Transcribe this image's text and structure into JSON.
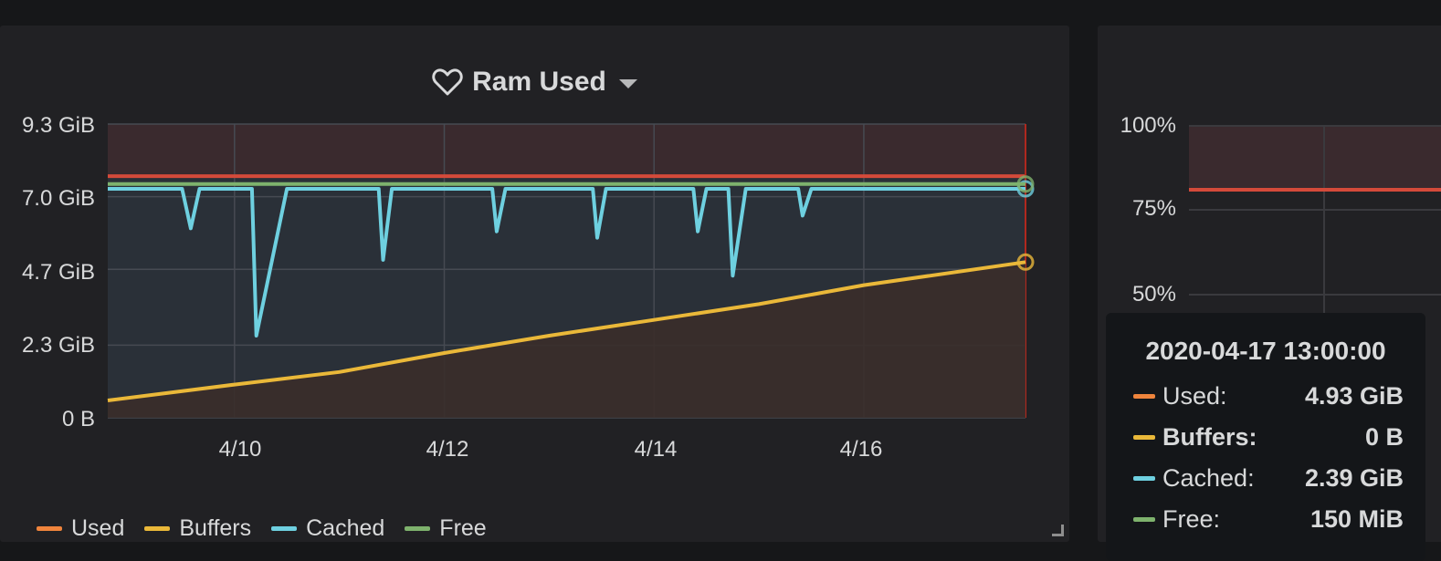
{
  "panel": {
    "title": "Ram Used",
    "title_icon": "heart-icon",
    "menu_icon": "caret-down-icon"
  },
  "chart_data": {
    "type": "line",
    "title": "Ram Used",
    "yticks": [
      "9.3 GiB",
      "7.0 GiB",
      "4.7 GiB",
      "2.3 GiB",
      "0 B"
    ],
    "xticks": [
      "4/10",
      "4/12",
      "4/14",
      "4/16"
    ],
    "ylim_gib": [
      0,
      9.3
    ],
    "x_range_days": [
      "2020-04-08T19:00",
      "2020-04-17T13:00"
    ],
    "threshold_gib": 7.65,
    "grid": true,
    "legend_position": "bottom-left",
    "series": [
      {
        "name": "Used",
        "color": "#ef843c",
        "points": []
      },
      {
        "name": "Buffers",
        "color": "#eab839",
        "points": [
          [
            "2020-04-08T19:00",
            0.55
          ],
          [
            "2020-04-10T00:00",
            1.05
          ],
          [
            "2020-04-11T00:00",
            1.45
          ],
          [
            "2020-04-12T00:00",
            2.05
          ],
          [
            "2020-04-13T00:00",
            2.6
          ],
          [
            "2020-04-14T00:00",
            3.1
          ],
          [
            "2020-04-15T00:00",
            3.6
          ],
          [
            "2020-04-16T00:00",
            4.2
          ],
          [
            "2020-04-17T13:00",
            4.93
          ]
        ]
      },
      {
        "name": "Cached",
        "color": "#6ed0e0",
        "points": [
          [
            "2020-04-08T19:00",
            7.25
          ],
          [
            "2020-04-09T12:00",
            7.25
          ],
          [
            "2020-04-09T14:00",
            6.0
          ],
          [
            "2020-04-09T16:00",
            7.25
          ],
          [
            "2020-04-10T04:00",
            7.25
          ],
          [
            "2020-04-10T05:00",
            2.6
          ],
          [
            "2020-04-10T12:00",
            7.25
          ],
          [
            "2020-04-11T09:00",
            7.25
          ],
          [
            "2020-04-11T10:00",
            5.0
          ],
          [
            "2020-04-11T12:00",
            7.25
          ],
          [
            "2020-04-12T11:00",
            7.25
          ],
          [
            "2020-04-12T12:00",
            5.9
          ],
          [
            "2020-04-12T14:00",
            7.25
          ],
          [
            "2020-04-13T10:00",
            7.25
          ],
          [
            "2020-04-13T11:00",
            5.7
          ],
          [
            "2020-04-13T13:00",
            7.25
          ],
          [
            "2020-04-14T09:00",
            7.25
          ],
          [
            "2020-04-14T10:00",
            5.9
          ],
          [
            "2020-04-14T12:00",
            7.25
          ],
          [
            "2020-04-14T17:00",
            7.25
          ],
          [
            "2020-04-14T18:00",
            4.5
          ],
          [
            "2020-04-14T21:00",
            7.25
          ],
          [
            "2020-04-15T09:00",
            7.25
          ],
          [
            "2020-04-15T10:00",
            6.4
          ],
          [
            "2020-04-15T12:00",
            7.25
          ],
          [
            "2020-04-17T13:00",
            7.25
          ]
        ]
      },
      {
        "name": "Free",
        "color": "#7eb26d",
        "points": [
          [
            "2020-04-08T19:00",
            7.4
          ],
          [
            "2020-04-17T13:00",
            7.4
          ]
        ]
      }
    ]
  },
  "legend": [
    {
      "label": "Used",
      "color": "#ef843c"
    },
    {
      "label": "Buffers",
      "color": "#eab839"
    },
    {
      "label": "Cached",
      "color": "#6ed0e0"
    },
    {
      "label": "Free",
      "color": "#7eb26d"
    }
  ],
  "panel2": {
    "yticks": [
      "100%",
      "75%",
      "50%"
    ]
  },
  "tooltip": {
    "time": "2020-04-17 13:00:00",
    "rows": [
      {
        "label": "Used:",
        "value": "4.93 GiB",
        "color": "#ef843c",
        "bold": false
      },
      {
        "label": "Buffers:",
        "value": "0 B",
        "color": "#eab839",
        "bold": true
      },
      {
        "label": "Cached:",
        "value": "2.39 GiB",
        "color": "#6ed0e0",
        "bold": false
      },
      {
        "label": "Free:",
        "value": "150 MiB",
        "color": "#7eb26d",
        "bold": false
      }
    ]
  }
}
